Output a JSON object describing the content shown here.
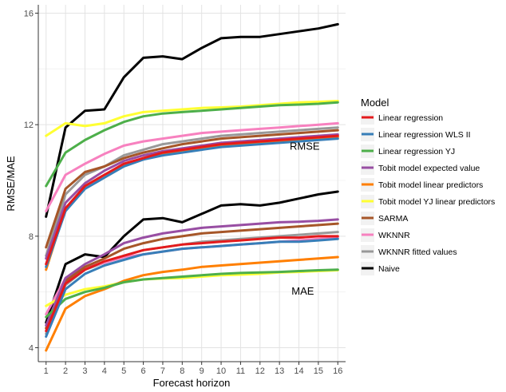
{
  "chart_data": {
    "type": "line",
    "xlabel": "Forecast horizon",
    "ylabel": "RMSE/MAE",
    "x": [
      1,
      2,
      3,
      4,
      5,
      6,
      7,
      8,
      9,
      10,
      11,
      12,
      13,
      14,
      15,
      16
    ],
    "xlim": [
      0.6,
      16.4
    ],
    "ylim": [
      3.5,
      16.3
    ],
    "yticks": [
      4,
      8,
      12,
      16
    ],
    "grid": true,
    "legend": {
      "title": "Model",
      "placement": "right",
      "entries": [
        {
          "name": "Linear regression",
          "color": "#e41a1c"
        },
        {
          "name": "Linear regression WLS II",
          "color": "#377eb8"
        },
        {
          "name": "Linear regression YJ",
          "color": "#4daf4a"
        },
        {
          "name": "Tobit model expected value",
          "color": "#984ea3"
        },
        {
          "name": "Tobit model linear predictors",
          "color": "#ff7f00"
        },
        {
          "name": "Tobit model YJ linear predictors",
          "color": "#ffff33"
        },
        {
          "name": "SARMA",
          "color": "#a65628"
        },
        {
          "name": "WKNNR",
          "color": "#f781bf"
        },
        {
          "name": "WKNNR fitted values",
          "color": "#999999"
        },
        {
          "name": "Naive",
          "color": "#000000"
        }
      ]
    },
    "annotations": [
      {
        "text": "RMSE",
        "x": 14.3,
        "y": 11.1
      },
      {
        "text": "MAE",
        "x": 14.2,
        "y": 5.9
      }
    ],
    "series": [
      {
        "name": "Linear regression",
        "metric": "RMSE",
        "color": "#e41a1c",
        "values": [
          7.0,
          9.0,
          9.8,
          10.2,
          10.6,
          10.8,
          11.0,
          11.1,
          11.2,
          11.3,
          11.35,
          11.4,
          11.45,
          11.5,
          11.55,
          11.6
        ]
      },
      {
        "name": "Linear regression WLS II",
        "metric": "RMSE",
        "color": "#377eb8",
        "values": [
          6.9,
          8.9,
          9.7,
          10.1,
          10.5,
          10.75,
          10.9,
          11.0,
          11.1,
          11.2,
          11.25,
          11.3,
          11.35,
          11.4,
          11.45,
          11.5
        ]
      },
      {
        "name": "Linear regression YJ",
        "metric": "RMSE",
        "color": "#4daf4a",
        "values": [
          9.8,
          11.0,
          11.45,
          11.8,
          12.1,
          12.3,
          12.4,
          12.45,
          12.5,
          12.55,
          12.6,
          12.65,
          12.7,
          12.72,
          12.75,
          12.8
        ]
      },
      {
        "name": "Tobit model expected value",
        "metric": "RMSE",
        "color": "#984ea3",
        "values": [
          7.2,
          9.2,
          9.9,
          10.35,
          10.7,
          10.9,
          11.05,
          11.15,
          11.25,
          11.35,
          11.4,
          11.45,
          11.5,
          11.55,
          11.6,
          11.65
        ]
      },
      {
        "name": "Tobit model linear predictors",
        "metric": "RMSE",
        "color": "#ff7f00",
        "values": [
          6.8,
          9.0,
          9.8,
          10.2,
          10.55,
          10.8,
          10.95,
          11.05,
          11.15,
          11.25,
          11.3,
          11.35,
          11.4,
          11.45,
          11.5,
          11.55
        ]
      },
      {
        "name": "Tobit model YJ linear predictors",
        "metric": "RMSE",
        "color": "#ffff33",
        "values": [
          11.6,
          12.05,
          11.95,
          12.05,
          12.3,
          12.45,
          12.5,
          12.55,
          12.6,
          12.62,
          12.65,
          12.7,
          12.75,
          12.8,
          12.82,
          12.85
        ]
      },
      {
        "name": "SARMA",
        "metric": "RMSE",
        "color": "#a65628",
        "values": [
          7.6,
          9.7,
          10.3,
          10.5,
          10.8,
          11.0,
          11.15,
          11.3,
          11.4,
          11.5,
          11.55,
          11.6,
          11.65,
          11.7,
          11.75,
          11.8
        ]
      },
      {
        "name": "WKNNR",
        "metric": "RMSE",
        "color": "#f781bf",
        "values": [
          8.9,
          10.2,
          10.6,
          10.95,
          11.25,
          11.4,
          11.5,
          11.6,
          11.7,
          11.75,
          11.8,
          11.85,
          11.9,
          11.95,
          12.0,
          12.05
        ]
      },
      {
        "name": "WKNNR fitted values",
        "metric": "RMSE",
        "color": "#999999",
        "values": [
          7.3,
          9.5,
          10.2,
          10.5,
          10.9,
          11.1,
          11.3,
          11.4,
          11.5,
          11.6,
          11.65,
          11.7,
          11.75,
          11.8,
          11.85,
          11.9
        ]
      },
      {
        "name": "Naive",
        "metric": "RMSE",
        "color": "#000000",
        "values": [
          8.7,
          11.9,
          12.5,
          12.55,
          13.7,
          14.4,
          14.45,
          14.35,
          14.75,
          15.1,
          15.15,
          15.15,
          15.25,
          15.35,
          15.45,
          15.6
        ]
      },
      {
        "name": "Linear regression",
        "metric": "MAE",
        "color": "#e41a1c",
        "values": [
          4.6,
          6.3,
          6.8,
          7.1,
          7.3,
          7.5,
          7.6,
          7.7,
          7.75,
          7.8,
          7.85,
          7.9,
          7.95,
          7.95,
          8.0,
          8.0
        ]
      },
      {
        "name": "Linear regression WLS II",
        "metric": "MAE",
        "color": "#377eb8",
        "values": [
          4.4,
          6.1,
          6.65,
          6.95,
          7.15,
          7.35,
          7.45,
          7.55,
          7.6,
          7.65,
          7.7,
          7.75,
          7.8,
          7.8,
          7.85,
          7.9
        ]
      },
      {
        "name": "Linear regression YJ",
        "metric": "MAE",
        "color": "#4daf4a",
        "values": [
          5.1,
          5.75,
          6.0,
          6.15,
          6.35,
          6.45,
          6.5,
          6.55,
          6.6,
          6.65,
          6.68,
          6.7,
          6.72,
          6.75,
          6.78,
          6.8
        ]
      },
      {
        "name": "Tobit model expected value",
        "metric": "MAE",
        "color": "#984ea3",
        "values": [
          4.8,
          6.5,
          7.0,
          7.35,
          7.75,
          7.95,
          8.1,
          8.2,
          8.3,
          8.35,
          8.4,
          8.45,
          8.5,
          8.52,
          8.55,
          8.6
        ]
      },
      {
        "name": "Tobit model linear predictors",
        "metric": "MAE",
        "color": "#ff7f00",
        "values": [
          3.9,
          5.4,
          5.85,
          6.1,
          6.4,
          6.6,
          6.72,
          6.8,
          6.9,
          6.95,
          7.0,
          7.05,
          7.1,
          7.15,
          7.2,
          7.25
        ]
      },
      {
        "name": "Tobit model YJ linear predictors",
        "metric": "MAE",
        "color": "#ffff33",
        "values": [
          5.5,
          5.9,
          6.1,
          6.2,
          6.35,
          6.45,
          6.48,
          6.5,
          6.55,
          6.6,
          6.62,
          6.65,
          6.7,
          6.72,
          6.75,
          6.78
        ]
      },
      {
        "name": "SARMA",
        "metric": "MAE",
        "color": "#a65628",
        "values": [
          4.7,
          6.4,
          6.9,
          7.2,
          7.55,
          7.75,
          7.9,
          8.0,
          8.1,
          8.15,
          8.2,
          8.25,
          8.3,
          8.35,
          8.4,
          8.45
        ]
      },
      {
        "name": "WKNNR",
        "metric": "MAE",
        "color": "#f781bf",
        "values": [
          5.2,
          6.5,
          6.85,
          7.05,
          7.25,
          7.35,
          7.45,
          7.55,
          7.6,
          7.65,
          7.7,
          7.75,
          7.8,
          7.85,
          7.9,
          7.95
        ]
      },
      {
        "name": "WKNNR fitted values",
        "metric": "MAE",
        "color": "#999999",
        "values": [
          4.5,
          6.25,
          6.8,
          7.05,
          7.3,
          7.5,
          7.6,
          7.7,
          7.8,
          7.85,
          7.9,
          7.95,
          8.0,
          8.05,
          8.1,
          8.15
        ]
      },
      {
        "name": "Naive",
        "metric": "MAE",
        "color": "#000000",
        "values": [
          4.9,
          7.0,
          7.35,
          7.25,
          8.0,
          8.6,
          8.65,
          8.5,
          8.8,
          9.1,
          9.15,
          9.1,
          9.2,
          9.35,
          9.5,
          9.6
        ]
      }
    ]
  }
}
